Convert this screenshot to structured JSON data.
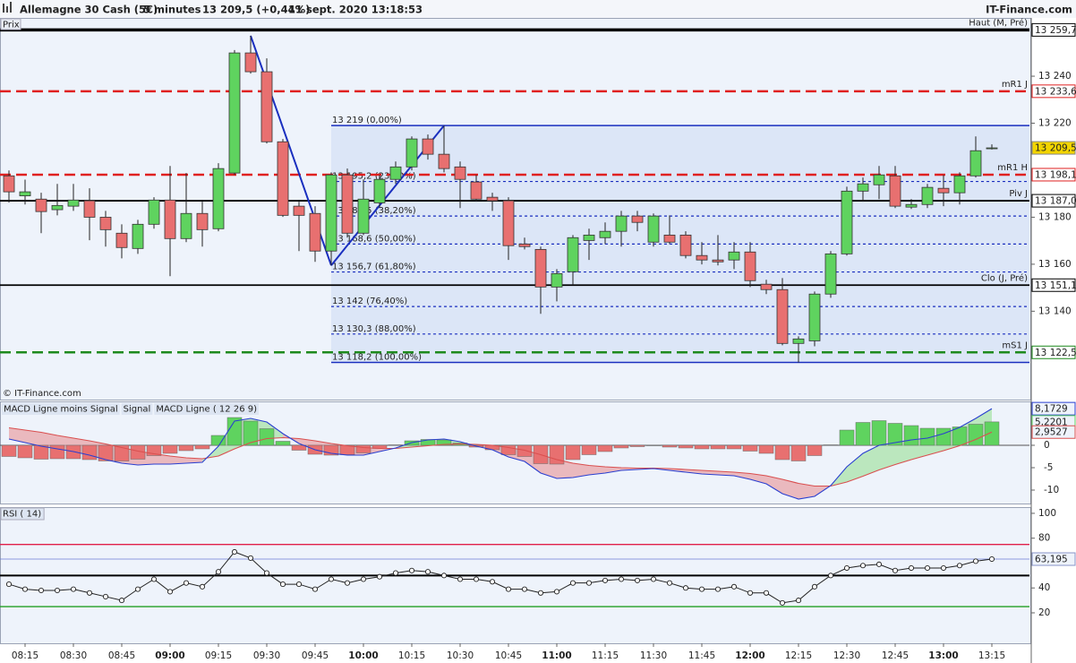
{
  "header": {
    "title": "Allemagne 30 Cash (5€)",
    "interval": "5 minutes",
    "last": "13 209,5 (+0,44%)",
    "datetime": "11 sept. 2020 13:18:53",
    "brand": "IT-Finance.com"
  },
  "chart_data": [
    {
      "type": "candlestick",
      "label": "Prix",
      "footer": "© IT-Finance.com",
      "categories": [
        null,
        "08:15",
        null,
        null,
        "08:30",
        null,
        null,
        "08:45",
        null,
        null,
        "09:00",
        null,
        null,
        "09:15",
        null,
        null,
        "09:30",
        null,
        null,
        "09:45",
        null,
        null,
        "10:00",
        null,
        null,
        "10:15",
        null,
        null,
        "10:30",
        null,
        null,
        "10:45",
        null,
        null,
        "11:00",
        null,
        null,
        "11:15",
        null,
        null,
        "11:30",
        null,
        null,
        "11:45",
        null,
        null,
        "12:00",
        null,
        null,
        "12:15",
        null,
        null,
        "12:30",
        null,
        null,
        "12:45",
        null,
        null,
        "13:00",
        null,
        null,
        "13:15"
      ],
      "open": [
        13197.6,
        13189.1,
        13187.7,
        13183.2,
        13184.7,
        13187,
        13180,
        13173.2,
        13166.7,
        13177,
        13187.3,
        13170.9,
        13181.6,
        13175.1,
        13198.8,
        13249.9,
        13241.9,
        13212.1,
        13184.7,
        13181.6,
        13165.6,
        13198,
        13173.2,
        13186.1,
        13196.1,
        13201.4,
        13213.3,
        13206.8,
        13201.4,
        13195,
        13188.5,
        13187,
        13168.6,
        13166.3,
        13150.3,
        13156.8,
        13170.1,
        13171.3,
        13174,
        13180.5,
        13169.4,
        13172.4,
        13172.4,
        13163.7,
        13161.8,
        13161.8,
        13165.2,
        13151.5,
        13149.2,
        13126.3,
        13127.4,
        13147.3,
        13164.4,
        13191.1,
        13193.8,
        13197.6,
        13184.3,
        13185.4,
        13192.3,
        13190.4,
        13197.6,
        13209.4
      ],
      "high": [
        13199.9,
        13196,
        13190.4,
        13194.2,
        13194.2,
        13192.3,
        13182.7,
        13177,
        13178.9,
        13188.5,
        13201.8,
        13198.8,
        13186.6,
        13203,
        13251.1,
        13257.2,
        13247.6,
        13213.3,
        13186.6,
        13184.7,
        13199.1,
        13200.7,
        13196.1,
        13198,
        13203.7,
        13214.4,
        13215.2,
        13219,
        13203.7,
        13198,
        13190.4,
        13188.5,
        13171.3,
        13167.5,
        13157.9,
        13172.4,
        13175.1,
        13177.8,
        13182.7,
        13182.7,
        13181.6,
        13180.8,
        13174,
        13169.4,
        13172.4,
        13169.4,
        13169.4,
        13153.4,
        13154.1,
        13129.3,
        13148.4,
        13165.6,
        13193,
        13196.9,
        13201.8,
        13201.8,
        13187.7,
        13194.2,
        13198,
        13199.1,
        13214.4,
        13211
      ],
      "low": [
        13186.2,
        13185.4,
        13173.2,
        13180.8,
        13182.7,
        13170.2,
        13167.5,
        13162.5,
        13164.4,
        13175.1,
        13154.9,
        13169.4,
        13167.5,
        13174,
        13198,
        13241.1,
        13211.4,
        13180.1,
        13165.6,
        13161,
        13159.5,
        13171.3,
        13172.4,
        13183.9,
        13194.2,
        13199.9,
        13204.5,
        13199.1,
        13183.9,
        13186.6,
        13182.7,
        13161.8,
        13166.3,
        13138.9,
        13144.2,
        13151.1,
        13161.8,
        13168.6,
        13167.5,
        13174,
        13167.5,
        13168.6,
        13162.5,
        13159.9,
        13159.5,
        13157.9,
        13150.3,
        13147.3,
        13125.5,
        13118.2,
        13125.1,
        13145.7,
        13163.7,
        13186.6,
        13187.7,
        13183.9,
        13183.5,
        13183.9,
        13184.7,
        13185.4,
        13196.9,
        13208.8
      ],
      "close": [
        13190.8,
        13190.8,
        13182.4,
        13185,
        13187.3,
        13180,
        13174.7,
        13167.1,
        13177,
        13187.3,
        13170.9,
        13181.6,
        13174.7,
        13200.7,
        13249.9,
        13241.9,
        13212.1,
        13180.8,
        13180.8,
        13165.6,
        13198,
        13173.2,
        13187.7,
        13196.1,
        13201.4,
        13213.3,
        13206.8,
        13200.7,
        13196.1,
        13187.7,
        13187,
        13167.9,
        13167.5,
        13150.3,
        13156,
        13171.3,
        13172.4,
        13174,
        13180.5,
        13177.8,
        13180.5,
        13169.4,
        13163.7,
        13161.8,
        13161,
        13165.2,
        13153,
        13149.2,
        13126.3,
        13128.2,
        13147.3,
        13164.4,
        13191.1,
        13194.2,
        13198,
        13184.7,
        13185.4,
        13192.7,
        13190.4,
        13197.6,
        13208.3,
        13209.5
      ],
      "up_color": "#5fd35f",
      "down_color": "#e87070",
      "ylim": [
        13102.4,
        13264.8
      ],
      "yticks": [
        {
          "value": 13240,
          "label": "13 240"
        },
        {
          "value": 13220,
          "label": "13 220"
        },
        {
          "value": 13180,
          "label": "13 180"
        },
        {
          "value": 13160,
          "label": "13 160"
        },
        {
          "value": 13140,
          "label": "13 140"
        }
      ],
      "last": {
        "value": 13209.5,
        "label": "13 209,5",
        "color": "#f2d400"
      },
      "levels": [
        {
          "name": "Haut (M, Pré)",
          "value": 13259.7,
          "label": "13 259,7",
          "color": "#000000",
          "style": "solid"
        },
        {
          "name": "mR1 J",
          "value": 13233.6,
          "label": "13 233,6",
          "color": "#e02020",
          "style": "dashed"
        },
        {
          "name": "mR1 H",
          "value": 13198.1,
          "label": "13 198,1",
          "color": "#e02020",
          "style": "dashed"
        },
        {
          "name": "Piv J",
          "value": 13187.0,
          "label": "13 187,0",
          "color": "#000000",
          "style": "solid"
        },
        {
          "name": "Clo (J, Pré)",
          "value": 13151.1,
          "label": "13 151,1",
          "color": "#000000",
          "style": "solid"
        },
        {
          "name": "mS1 J",
          "value": 13122.5,
          "label": "13 122,5",
          "color": "#1e8a1e",
          "style": "dashed"
        }
      ],
      "fibonacci": [
        {
          "value": 13219,
          "label": "13 219 (0,00%)"
        },
        {
          "value": 13195.2,
          "label": "13 195,2 (23,60%)"
        },
        {
          "value": 13180.5,
          "label": "13 180,5 (38,20%)"
        },
        {
          "value": 13168.6,
          "label": "13 168,6 (50,00%)"
        },
        {
          "value": 13156.7,
          "label": "13 156,7 (61,80%)"
        },
        {
          "value": 13142,
          "label": "13 142 (76,40%)"
        },
        {
          "value": 13130.3,
          "label": "13 130,3 (88,00%)"
        },
        {
          "value": 13118.2,
          "label": "13 118,2 (100,00%)"
        }
      ],
      "fib_color": "#1a2fbf"
    },
    {
      "type": "macd",
      "series": [
        {
          "name": "MACD Ligne moins Signal",
          "color": "#5fd35f",
          "neg_color": "#e87070",
          "last_label": "5,2201",
          "values": [
            -2.5,
            -2.8,
            -3.1,
            -3.0,
            -3.0,
            -3.2,
            -3.5,
            -3.5,
            -3.1,
            -2.3,
            -1.8,
            -1.2,
            -0.8,
            2.2,
            6.2,
            5.4,
            3.7,
            0.9,
            -1.1,
            -2.0,
            -2.2,
            -2.1,
            -1.7,
            -0.7,
            0.1,
            1.0,
            1.3,
            1.2,
            0.5,
            -0.4,
            -1.0,
            -2.1,
            -2.5,
            -4.1,
            -4.2,
            -3.2,
            -2.1,
            -1.4,
            -0.6,
            -0.3,
            -0.1,
            -0.4,
            -0.6,
            -0.8,
            -0.8,
            -0.8,
            -1.3,
            -1.8,
            -3.2,
            -3.5,
            -2.3,
            0.1,
            3.4,
            5.1,
            5.5,
            4.9,
            4.4,
            3.8,
            3.8,
            4.1,
            4.7,
            5.2201
          ]
        },
        {
          "name": "Signal",
          "color": "#d94f4f",
          "last_label": "2,9527",
          "values": [
            3.9,
            3.4,
            2.9,
            2.2,
            1.6,
            1.0,
            0.3,
            -0.5,
            -1.3,
            -1.9,
            -2.4,
            -2.8,
            -3.0,
            -2.4,
            -0.8,
            0.6,
            1.5,
            1.7,
            1.5,
            1.0,
            0.4,
            -0.1,
            -0.5,
            -0.7,
            -0.7,
            -0.4,
            -0.1,
            0.2,
            0.3,
            0.2,
            0,
            -0.5,
            -1.1,
            -2.1,
            -3.2,
            -4.0,
            -4.5,
            -4.8,
            -5.0,
            -5.1,
            -5.1,
            -5.2,
            -5.4,
            -5.6,
            -5.8,
            -6.0,
            -6.3,
            -6.8,
            -7.6,
            -8.5,
            -9.1,
            -9.1,
            -8.2,
            -6.9,
            -5.5,
            -4.3,
            -3.2,
            -2.2,
            -1.2,
            -0.1,
            1.3,
            2.9527
          ]
        },
        {
          "name": "MACD Ligne ( 12 26 9)",
          "color": "#2a3fd0",
          "last_label": "8,1729",
          "values": [
            1.4,
            0.6,
            -0.2,
            -0.8,
            -1.4,
            -2.2,
            -3.2,
            -4.0,
            -4.4,
            -4.2,
            -4.2,
            -4.0,
            -3.8,
            -0.2,
            5.4,
            6.0,
            5.2,
            2.6,
            0.4,
            -1.0,
            -1.8,
            -2.2,
            -2.2,
            -1.4,
            -0.6,
            0.6,
            1.2,
            1.4,
            0.8,
            -0.2,
            -1.0,
            -2.6,
            -3.6,
            -6.2,
            -7.4,
            -7.2,
            -6.6,
            -6.2,
            -5.6,
            -5.4,
            -5.2,
            -5.6,
            -6.0,
            -6.4,
            -6.6,
            -6.8,
            -7.6,
            -8.6,
            -10.8,
            -12.0,
            -11.4,
            -9.0,
            -4.8,
            -1.8,
            0,
            0.6,
            1.2,
            1.6,
            2.6,
            4.0,
            6.0,
            8.1729
          ]
        }
      ],
      "ylim": [
        -13,
        9.8
      ],
      "yticks": [
        -10,
        -5,
        0
      ]
    },
    {
      "type": "line",
      "series": [
        {
          "name": "RSI ( 14)",
          "color": "#222222",
          "last_label": "63,195",
          "values": [
            43,
            39,
            38,
            38,
            39,
            36,
            33,
            30,
            39,
            47,
            37,
            44,
            41,
            53,
            69,
            64,
            52,
            43,
            43,
            39,
            47,
            44,
            47,
            49,
            52,
            54,
            53,
            50,
            47,
            47,
            45,
            39,
            39,
            36,
            37,
            44,
            44,
            46,
            47,
            46,
            47,
            44,
            40,
            39,
            39,
            41,
            36,
            36,
            28,
            30,
            41,
            50,
            56,
            58,
            59,
            54,
            56,
            56,
            56,
            58,
            61.5,
            63.195
          ]
        }
      ],
      "levels": [
        {
          "value": 75,
          "color": "#e0204a"
        },
        {
          "value": 50,
          "color": "#000000"
        },
        {
          "value": 25,
          "color": "#22a022"
        }
      ],
      "ylim": [
        -4.5,
        105
      ],
      "yticks": [
        20,
        40,
        80,
        100
      ]
    }
  ]
}
